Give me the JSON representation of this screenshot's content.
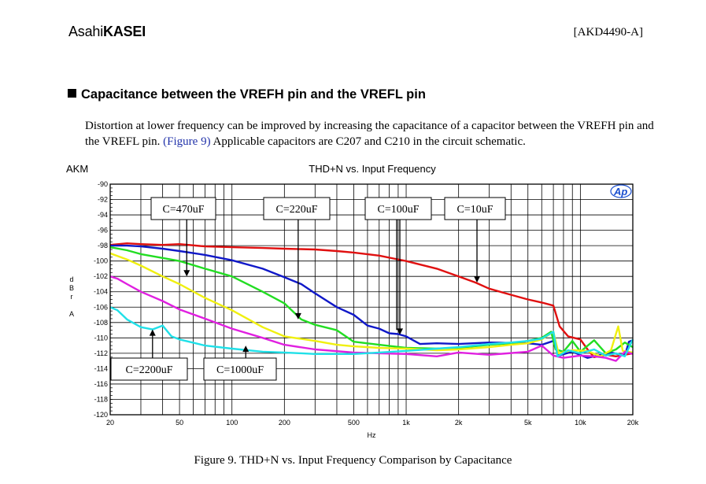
{
  "header": {
    "logo_part1": "Asahi",
    "logo_part2": "KASEI",
    "doc_id": "[AKD4490-A]"
  },
  "section": {
    "heading": "Capacitance between the VREFH pin and the VREFL pin",
    "para_1": "Distortion at lower frequency can be improved by increasing the capacitance of a capacitor between the VREFH pin and the VREFL pin. ",
    "para_link": "(Figure 9)",
    "para_2": "  Applicable capacitors are C207 and C210 in the circuit schematic."
  },
  "chart_data": {
    "type": "line",
    "brand": "AKM",
    "watermark": "Ap",
    "title": "THD+N vs. Input Frequency",
    "xlabel": "Hz",
    "ylabel": "d B r A",
    "xscale": "log",
    "xlim": [
      20,
      20000
    ],
    "ylim": [
      -120,
      -90
    ],
    "grid": true,
    "yticks": [
      -90,
      -92,
      -94,
      -96,
      -98,
      -100,
      -102,
      -104,
      -106,
      -108,
      -110,
      -112,
      -114,
      -116,
      -118,
      -120
    ],
    "xticks": [
      {
        "v": 20,
        "label": "20"
      },
      {
        "v": 50,
        "label": "50"
      },
      {
        "v": 100,
        "label": "100"
      },
      {
        "v": 200,
        "label": "200"
      },
      {
        "v": 500,
        "label": "500"
      },
      {
        "v": 1000,
        "label": "1k"
      },
      {
        "v": 2000,
        "label": "2k"
      },
      {
        "v": 5000,
        "label": "5k"
      },
      {
        "v": 10000,
        "label": "10k"
      },
      {
        "v": 20000,
        "label": "20k"
      }
    ],
    "annotations": [
      {
        "label": "C=470uF",
        "arrow_x": 55,
        "arrow_y": -102.0
      },
      {
        "label": "C=220uF",
        "arrow_x": 240,
        "arrow_y": -107.6
      },
      {
        "label": "C=100uF",
        "arrow_x": 920,
        "arrow_y": -109.6
      },
      {
        "label": "C=10uF",
        "arrow_x": 2550,
        "arrow_y": -102.8
      },
      {
        "label": "C=2200uF",
        "arrow_x": 35,
        "arrow_y": -108.9
      },
      {
        "label": "C=1000uF",
        "arrow_x": 120,
        "arrow_y": -111.0
      }
    ],
    "series": [
      {
        "color": "#e01010",
        "points": [
          [
            20,
            -97.9
          ],
          [
            25,
            -97.7
          ],
          [
            30,
            -97.8
          ],
          [
            40,
            -97.9
          ],
          [
            50,
            -97.8
          ],
          [
            70,
            -98.1
          ],
          [
            100,
            -98.2
          ],
          [
            150,
            -98.3
          ],
          [
            200,
            -98.4
          ],
          [
            300,
            -98.5
          ],
          [
            400,
            -98.7
          ],
          [
            500,
            -98.9
          ],
          [
            700,
            -99.3
          ],
          [
            1000,
            -100.0
          ],
          [
            1500,
            -101.0
          ],
          [
            2000,
            -102.0
          ],
          [
            2500,
            -102.8
          ],
          [
            3000,
            -103.6
          ],
          [
            4000,
            -104.4
          ],
          [
            5000,
            -105.0
          ],
          [
            6000,
            -105.4
          ],
          [
            7000,
            -105.8
          ],
          [
            7600,
            -108.5
          ],
          [
            8500,
            -109.8
          ],
          [
            10000,
            -110.2
          ],
          [
            11000,
            -111.5
          ],
          [
            12000,
            -112.5
          ],
          [
            14000,
            -112.2
          ],
          [
            16000,
            -112.4
          ],
          [
            20000,
            -112.0
          ]
        ]
      },
      {
        "color": "#1018c8",
        "points": [
          [
            20,
            -98.0
          ],
          [
            25,
            -98.0
          ],
          [
            30,
            -98.1
          ],
          [
            40,
            -98.4
          ],
          [
            50,
            -98.7
          ],
          [
            70,
            -99.2
          ],
          [
            100,
            -99.9
          ],
          [
            150,
            -101.0
          ],
          [
            200,
            -102.1
          ],
          [
            250,
            -103.0
          ],
          [
            300,
            -104.2
          ],
          [
            400,
            -106.0
          ],
          [
            500,
            -107.0
          ],
          [
            600,
            -108.4
          ],
          [
            700,
            -108.8
          ],
          [
            800,
            -109.4
          ],
          [
            900,
            -109.5
          ],
          [
            1000,
            -109.8
          ],
          [
            1200,
            -110.8
          ],
          [
            1500,
            -110.7
          ],
          [
            2000,
            -110.8
          ],
          [
            3000,
            -110.6
          ],
          [
            5000,
            -110.7
          ],
          [
            6000,
            -110.9
          ],
          [
            7000,
            -110.4
          ],
          [
            7500,
            -112.3
          ],
          [
            9000,
            -111.8
          ],
          [
            11000,
            -112.6
          ],
          [
            15000,
            -111.9
          ],
          [
            18000,
            -112.3
          ],
          [
            19000,
            -110.5
          ],
          [
            20000,
            -110.3
          ]
        ]
      },
      {
        "color": "#22dd22",
        "points": [
          [
            20,
            -98.2
          ],
          [
            25,
            -98.6
          ],
          [
            30,
            -99.1
          ],
          [
            40,
            -99.6
          ],
          [
            50,
            -100.0
          ],
          [
            70,
            -101.0
          ],
          [
            100,
            -102.0
          ],
          [
            150,
            -104.0
          ],
          [
            200,
            -105.5
          ],
          [
            250,
            -107.6
          ],
          [
            300,
            -108.3
          ],
          [
            400,
            -109.0
          ],
          [
            500,
            -110.5
          ],
          [
            700,
            -110.9
          ],
          [
            1000,
            -111.3
          ],
          [
            1500,
            -111.4
          ],
          [
            2000,
            -111.3
          ],
          [
            3000,
            -110.9
          ],
          [
            4000,
            -110.7
          ],
          [
            5000,
            -110.4
          ],
          [
            6000,
            -110.0
          ],
          [
            6800,
            -109.2
          ],
          [
            7200,
            -111.5
          ],
          [
            8000,
            -111.8
          ],
          [
            9000,
            -110.4
          ],
          [
            10000,
            -111.8
          ],
          [
            12000,
            -110.3
          ],
          [
            14000,
            -112.0
          ],
          [
            16000,
            -111.5
          ],
          [
            18000,
            -110.6
          ],
          [
            20000,
            -111.2
          ]
        ]
      },
      {
        "color": "#f0f010",
        "points": [
          [
            20,
            -99.0
          ],
          [
            25,
            -99.8
          ],
          [
            30,
            -100.6
          ],
          [
            40,
            -102.0
          ],
          [
            50,
            -103.0
          ],
          [
            70,
            -104.8
          ],
          [
            100,
            -106.4
          ],
          [
            150,
            -108.6
          ],
          [
            200,
            -109.8
          ],
          [
            300,
            -110.4
          ],
          [
            400,
            -110.9
          ],
          [
            500,
            -111.1
          ],
          [
            700,
            -111.3
          ],
          [
            1000,
            -111.4
          ],
          [
            1500,
            -111.6
          ],
          [
            2000,
            -111.5
          ],
          [
            3000,
            -111.2
          ],
          [
            4000,
            -110.9
          ],
          [
            5000,
            -110.7
          ],
          [
            6000,
            -110.2
          ],
          [
            7000,
            -109.2
          ],
          [
            7500,
            -112.0
          ],
          [
            9000,
            -111.6
          ],
          [
            11000,
            -111.7
          ],
          [
            13000,
            -112.4
          ],
          [
            15000,
            -111.6
          ],
          [
            16500,
            -108.5
          ],
          [
            17500,
            -111.7
          ],
          [
            20000,
            -111.9
          ]
        ]
      },
      {
        "color": "#e020e0",
        "points": [
          [
            20,
            -102.0
          ],
          [
            22,
            -102.3
          ],
          [
            25,
            -103.0
          ],
          [
            30,
            -104.0
          ],
          [
            40,
            -105.2
          ],
          [
            50,
            -106.3
          ],
          [
            70,
            -107.5
          ],
          [
            100,
            -108.8
          ],
          [
            150,
            -110.0
          ],
          [
            200,
            -110.9
          ],
          [
            300,
            -111.5
          ],
          [
            500,
            -111.9
          ],
          [
            700,
            -112.0
          ],
          [
            1000,
            -112.1
          ],
          [
            1500,
            -112.4
          ],
          [
            2000,
            -111.9
          ],
          [
            3000,
            -112.2
          ],
          [
            5000,
            -111.8
          ],
          [
            6000,
            -111.0
          ],
          [
            7000,
            -112.3
          ],
          [
            8000,
            -112.6
          ],
          [
            10000,
            -112.3
          ],
          [
            12000,
            -112.4
          ],
          [
            14000,
            -112.6
          ],
          [
            16000,
            -113.0
          ],
          [
            18000,
            -111.8
          ],
          [
            20000,
            -112.1
          ]
        ]
      },
      {
        "color": "#20e0e8",
        "points": [
          [
            20,
            -106.0
          ],
          [
            22,
            -106.4
          ],
          [
            25,
            -107.6
          ],
          [
            30,
            -108.6
          ],
          [
            35,
            -108.9
          ],
          [
            40,
            -108.4
          ],
          [
            45,
            -109.8
          ],
          [
            50,
            -110.2
          ],
          [
            70,
            -111.0
          ],
          [
            100,
            -111.4
          ],
          [
            150,
            -111.8
          ],
          [
            200,
            -111.9
          ],
          [
            300,
            -112.1
          ],
          [
            500,
            -112.1
          ],
          [
            700,
            -111.9
          ],
          [
            1000,
            -111.7
          ],
          [
            1500,
            -111.4
          ],
          [
            2000,
            -111.2
          ],
          [
            3000,
            -110.8
          ],
          [
            4000,
            -110.6
          ],
          [
            5000,
            -110.4
          ],
          [
            6000,
            -110.1
          ],
          [
            7000,
            -109.2
          ],
          [
            7400,
            -112.4
          ],
          [
            8500,
            -111.6
          ],
          [
            10000,
            -112.0
          ],
          [
            12000,
            -111.5
          ],
          [
            14000,
            -112.3
          ],
          [
            16000,
            -112.0
          ],
          [
            18000,
            -112.4
          ],
          [
            20000,
            -110.2
          ]
        ]
      }
    ]
  },
  "caption": "Figure 9. THD+N vs. Input Frequency Comparison by Capacitance"
}
